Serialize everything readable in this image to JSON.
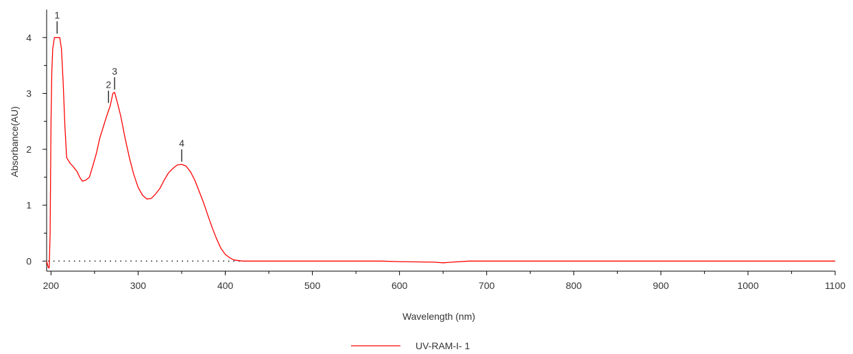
{
  "chart_data": {
    "type": "line",
    "title": "",
    "xlabel": "Wavelength (nm)",
    "ylabel": "Absorbance(AU)",
    "xlim": [
      195,
      1100
    ],
    "ylim": [
      -0.18,
      4.5
    ],
    "x_ticks": [
      200,
      300,
      400,
      500,
      600,
      700,
      800,
      900,
      1000,
      1100
    ],
    "y_ticks": [
      0,
      1,
      2,
      3,
      4
    ],
    "grid": false,
    "baseline": 0,
    "legend_position": "bottom-center",
    "series": [
      {
        "name": "UV-RAM-I- 1",
        "color": "#ff0000",
        "points": [
          [
            195,
            0.0
          ],
          [
            197,
            -0.12
          ],
          [
            198,
            -0.12
          ],
          [
            199,
            0.5
          ],
          [
            200,
            2.5
          ],
          [
            201,
            3.4
          ],
          [
            202,
            3.8
          ],
          [
            204,
            4.0
          ],
          [
            210,
            4.0
          ],
          [
            212,
            3.8
          ],
          [
            214,
            3.2
          ],
          [
            216,
            2.4
          ],
          [
            218,
            1.85
          ],
          [
            222,
            1.75
          ],
          [
            226,
            1.68
          ],
          [
            230,
            1.6
          ],
          [
            233,
            1.5
          ],
          [
            236,
            1.43
          ],
          [
            240,
            1.45
          ],
          [
            244,
            1.5
          ],
          [
            248,
            1.7
          ],
          [
            252,
            1.92
          ],
          [
            256,
            2.2
          ],
          [
            260,
            2.4
          ],
          [
            264,
            2.6
          ],
          [
            268,
            2.78
          ],
          [
            271,
            3.0
          ],
          [
            273,
            3.02
          ],
          [
            276,
            2.85
          ],
          [
            280,
            2.6
          ],
          [
            285,
            2.2
          ],
          [
            290,
            1.85
          ],
          [
            295,
            1.55
          ],
          [
            300,
            1.32
          ],
          [
            305,
            1.18
          ],
          [
            310,
            1.11
          ],
          [
            315,
            1.12
          ],
          [
            320,
            1.2
          ],
          [
            325,
            1.3
          ],
          [
            330,
            1.45
          ],
          [
            335,
            1.58
          ],
          [
            340,
            1.66
          ],
          [
            345,
            1.72
          ],
          [
            350,
            1.73
          ],
          [
            355,
            1.7
          ],
          [
            360,
            1.6
          ],
          [
            365,
            1.45
          ],
          [
            370,
            1.25
          ],
          [
            375,
            1.05
          ],
          [
            380,
            0.82
          ],
          [
            385,
            0.6
          ],
          [
            390,
            0.4
          ],
          [
            395,
            0.23
          ],
          [
            400,
            0.12
          ],
          [
            405,
            0.06
          ],
          [
            410,
            0.02
          ],
          [
            420,
            0.0
          ],
          [
            500,
            0.0
          ],
          [
            580,
            0.0
          ],
          [
            600,
            -0.01
          ],
          [
            640,
            -0.02
          ],
          [
            650,
            -0.03
          ],
          [
            660,
            -0.02
          ],
          [
            680,
            0.0
          ],
          [
            800,
            0.0
          ],
          [
            1000,
            0.0
          ],
          [
            1100,
            0.0
          ]
        ]
      }
    ],
    "annotations": [
      {
        "label": "1",
        "x": 207,
        "y": 4.02
      },
      {
        "label": "2",
        "x": 266,
        "y": 2.78
      },
      {
        "label": "3",
        "x": 273,
        "y": 3.02
      },
      {
        "label": "4",
        "x": 350,
        "y": 1.73
      }
    ]
  }
}
